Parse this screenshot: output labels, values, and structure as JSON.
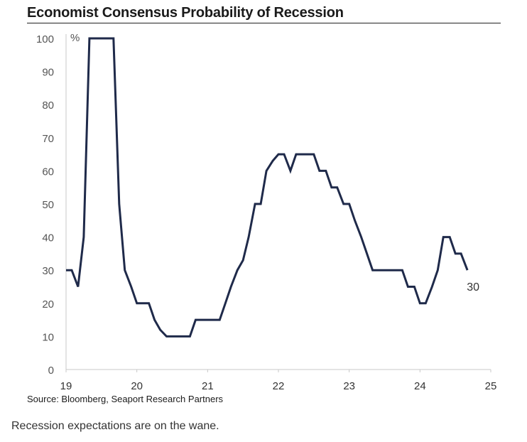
{
  "chart_data": {
    "type": "line",
    "title": "Economist Consensus Probability of Recession",
    "unit_label": "%",
    "xlabel": "",
    "ylabel": "",
    "x_ticks": [
      "19",
      "20",
      "21",
      "22",
      "23",
      "24",
      "25"
    ],
    "x_tick_values": [
      19,
      20,
      21,
      22,
      23,
      24,
      25
    ],
    "y_ticks": [
      "100",
      "90",
      "80",
      "70",
      "60",
      "50",
      "40",
      "30",
      "20",
      "10",
      "0"
    ],
    "y_tick_values": [
      100,
      90,
      80,
      70,
      60,
      50,
      40,
      30,
      20,
      10,
      0
    ],
    "xlim": [
      19,
      25
    ],
    "ylim": [
      0,
      100
    ],
    "grid": false,
    "series": [
      {
        "name": "Probability of Recession",
        "color": "#1f2a4a",
        "x": [
          19.0,
          19.08,
          19.17,
          19.25,
          19.33,
          19.5,
          19.67,
          19.75,
          19.83,
          19.92,
          20.0,
          20.17,
          20.25,
          20.33,
          20.42,
          20.58,
          20.75,
          20.83,
          21.0,
          21.17,
          21.25,
          21.33,
          21.42,
          21.5,
          21.58,
          21.67,
          21.75,
          21.83,
          21.92,
          22.0,
          22.08,
          22.17,
          22.25,
          22.33,
          22.42,
          22.5,
          22.58,
          22.67,
          22.75,
          22.83,
          22.92,
          23.0,
          23.08,
          23.17,
          23.25,
          23.33,
          23.5,
          23.67,
          23.75,
          23.83,
          23.92,
          24.0,
          24.08,
          24.17,
          24.25,
          24.33,
          24.42,
          24.5,
          24.58,
          24.67
        ],
        "y": [
          30,
          30,
          25,
          40,
          100,
          100,
          100,
          50,
          30,
          25,
          20,
          20,
          15,
          12,
          10,
          10,
          10,
          15,
          15,
          15,
          20,
          25,
          30,
          33,
          40,
          50,
          50,
          60,
          63,
          65,
          65,
          60,
          65,
          65,
          65,
          65,
          60,
          60,
          55,
          55,
          50,
          50,
          45,
          40,
          35,
          30,
          30,
          30,
          30,
          25,
          25,
          20,
          20,
          25,
          30,
          40,
          40,
          35,
          35,
          30
        ]
      }
    ],
    "annotations": [
      {
        "text": "30",
        "x": 24.67,
        "y": 30
      }
    ]
  },
  "source": "Source: Bloomberg, Seaport Research Partners",
  "caption": "Recession expectations are on the wane."
}
